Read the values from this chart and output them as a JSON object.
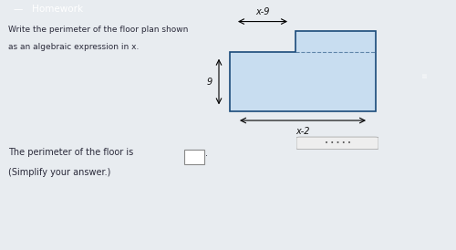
{
  "bg_top": "#1e3a5f",
  "bg_main": "#e8ecf0",
  "bg_floor_panel": "#d0dce8",
  "bg_bottom": "#e8ecf0",
  "title_text1": "Write the perimeter of the floor plan shown",
  "title_text2": "as an algebraic expression in x.",
  "answer_text": "The perimeter of the floor is",
  "simplify_text": "(Simplify your answer.)",
  "label_x9": "x-9",
  "label_9": "9",
  "label_x2": "x-2",
  "text_color": "#2a2a3a",
  "floor_line_color": "#1a4a7a",
  "floor_fill_color": "#c8ddf0",
  "header_text": "—   Homework",
  "dots_text": ".....",
  "divider_color": "#aaaaaa",
  "ans_box_edge": "#888888"
}
